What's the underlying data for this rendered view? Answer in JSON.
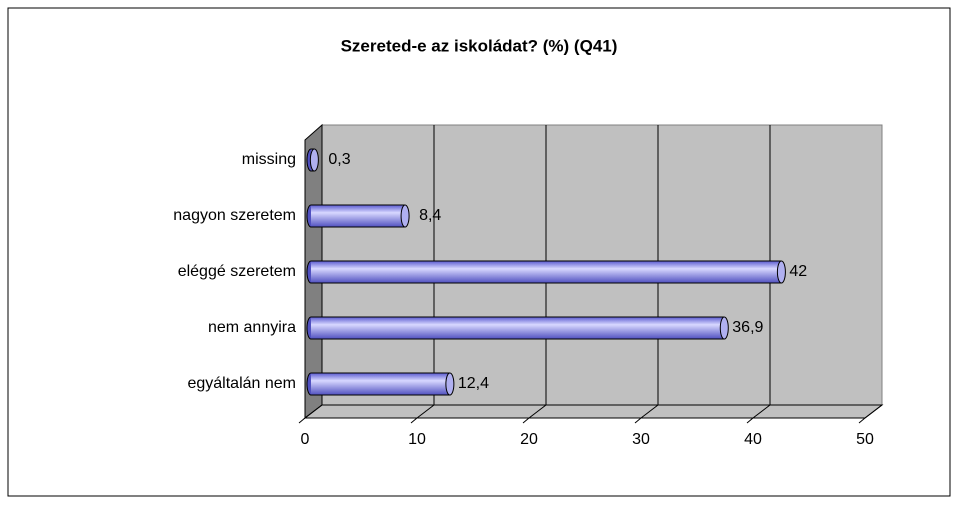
{
  "chart_data": {
    "type": "bar",
    "orientation": "horizontal",
    "title": "Szereted-e az iskoládat? (%) (Q41)",
    "categories": [
      "missing",
      "nagyon szeretem",
      "eléggé szeretem",
      "nem annyira",
      "egyáltalán nem"
    ],
    "values": [
      0.3,
      8.4,
      42,
      36.9,
      12.4
    ],
    "value_labels": [
      "0,3",
      "8,4",
      "42",
      "36,9",
      "12,4"
    ],
    "color": "#9999ff",
    "xlim": [
      0,
      50
    ],
    "xticks": [
      0,
      10,
      20,
      30,
      40,
      50
    ],
    "grid": true
  }
}
